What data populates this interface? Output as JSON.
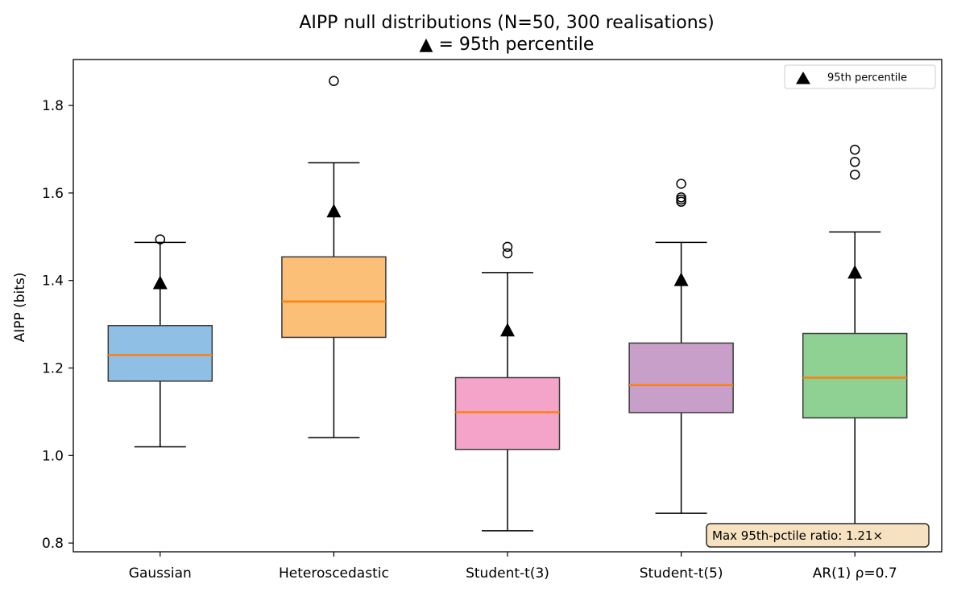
{
  "chart_data": {
    "type": "box",
    "title": "AIPP null distributions (N=50, 300 realisations)",
    "subtitle": "▲ = 95th percentile",
    "xlabel": "",
    "ylabel": "AIPP (bits)",
    "ylim": [
      0.78,
      1.905
    ],
    "yticks": [
      "0.8",
      "1.0",
      "1.2",
      "1.4",
      "1.6",
      "1.8"
    ],
    "yticks_values": [
      0.8,
      1.0,
      1.2,
      1.4,
      1.6,
      1.8
    ],
    "grid": false,
    "legend": {
      "label": "95th percentile",
      "position": "top-right"
    },
    "annotation": "Max 95th-pctile ratio: 1.21×",
    "median_color": "#ff7f0e",
    "groups": [
      {
        "label": "Gaussian",
        "color": "#8fbfe5",
        "whisker_low": 1.02,
        "q1": 1.17,
        "median": 1.23,
        "q3": 1.297,
        "whisker_high": 1.487,
        "p95": 1.394,
        "outliers": [
          1.494
        ]
      },
      {
        "label": "Heteroscedastic",
        "color": "#fbbf77",
        "whisker_low": 1.041,
        "q1": 1.27,
        "median": 1.352,
        "q3": 1.454,
        "whisker_high": 1.669,
        "p95": 1.558,
        "outliers": [
          1.856
        ]
      },
      {
        "label": "Student-t(3)",
        "color": "#f4a4c9",
        "whisker_low": 0.828,
        "q1": 1.014,
        "median": 1.099,
        "q3": 1.178,
        "whisker_high": 1.418,
        "p95": 1.286,
        "outliers": [
          1.462,
          1.477
        ]
      },
      {
        "label": "Student-t(5)",
        "color": "#c89fc9",
        "whisker_low": 0.868,
        "q1": 1.098,
        "median": 1.161,
        "q3": 1.257,
        "whisker_high": 1.487,
        "p95": 1.401,
        "outliers": [
          1.58,
          1.585,
          1.59,
          1.621
        ]
      },
      {
        "label": "AR(1) ρ=0.7",
        "color": "#8fd192",
        "whisker_low": 0.83,
        "q1": 1.086,
        "median": 1.178,
        "q3": 1.279,
        "whisker_high": 1.511,
        "p95": 1.418,
        "outliers": [
          1.642,
          1.671,
          1.699
        ]
      }
    ]
  }
}
